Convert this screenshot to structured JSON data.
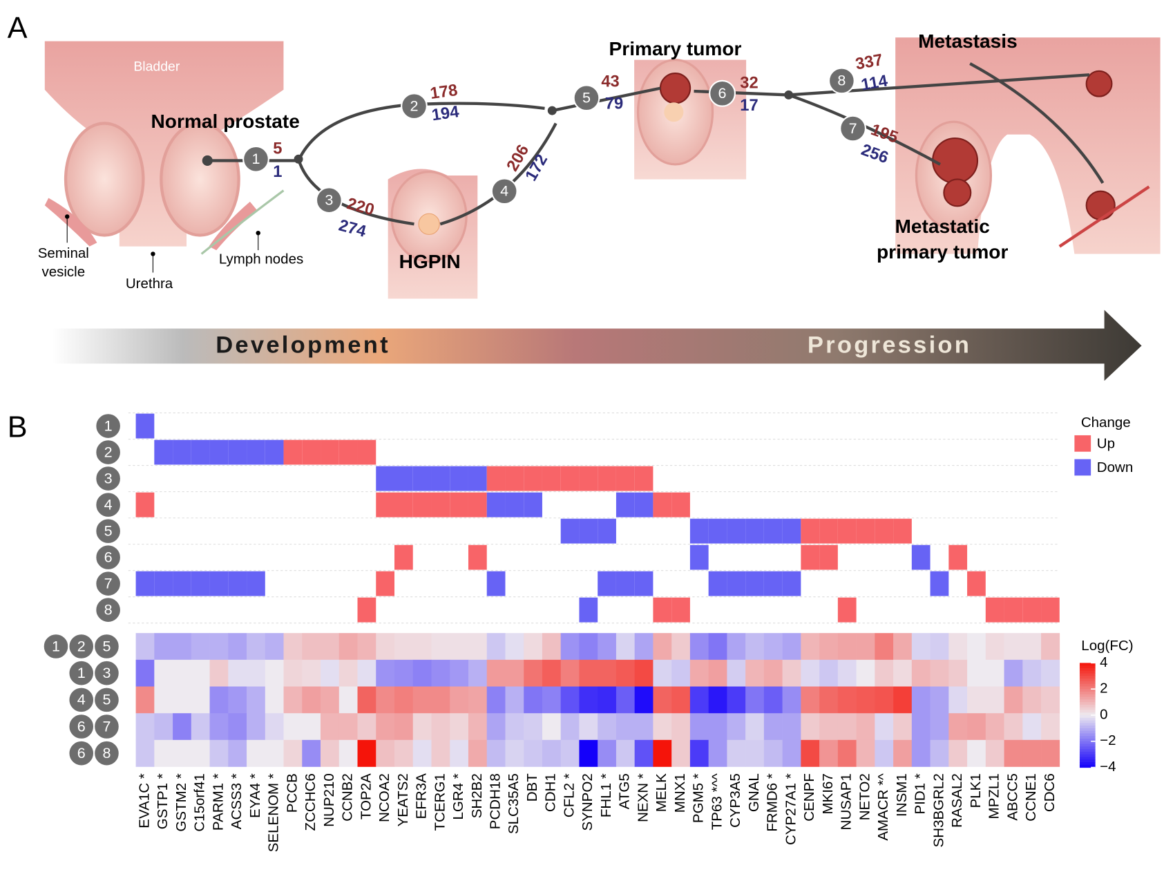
{
  "panel_a": {
    "label": "A",
    "organ_labels": {
      "bladder": "Bladder",
      "seminal": [
        "Seminal",
        "vesicle"
      ],
      "urethra": "Urethra",
      "lymph": "Lymph nodes"
    },
    "stages": {
      "normal": "Normal prostate",
      "hgpin": "HGPIN",
      "primary": "Primary tumor",
      "metastasis": "Metastasis",
      "metastatic_primary": [
        "Metastatic",
        "primary tumor"
      ]
    },
    "steps": [
      {
        "id": "1",
        "up": 5,
        "down": 1
      },
      {
        "id": "2",
        "up": 178,
        "down": 194
      },
      {
        "id": "3",
        "up": 220,
        "down": 274
      },
      {
        "id": "4",
        "up": 206,
        "down": 172
      },
      {
        "id": "5",
        "up": 43,
        "down": 79
      },
      {
        "id": "6",
        "up": 32,
        "down": 17
      },
      {
        "id": "7",
        "up": 195,
        "down": 256
      },
      {
        "id": "8",
        "up": 337,
        "down": 114
      }
    ],
    "axis": [
      "Development",
      "Progression"
    ]
  },
  "chart_data": {
    "type": "heatmap",
    "label": "B",
    "genes": [
      "EVA1C *",
      "GSTP1 *",
      "GSTM2 *",
      "C15orf41",
      "PARM1 *",
      "ACSS3 *",
      "EYA4 *",
      "SELENOM *",
      "PCCB",
      "ZCCHC6",
      "NUP210",
      "CCNB2",
      "TOP2A",
      "NCOA2",
      "YEATS2",
      "EFR3A",
      "TCERG1",
      "LGR4 *",
      "SH2B2",
      "PCDH18",
      "SLC35A5",
      "DBT",
      "CDH1",
      "CFL2 *",
      "SYNPO2",
      "FHL1 *",
      "ATG5",
      "NEXN *",
      "MELK",
      "MNX1",
      "PGM5 *",
      "TP63 *^^",
      "CYP3A5",
      "GNAL",
      "FRMD6 *",
      "CYP27A1 *",
      "CENPF",
      "MKI67",
      "NUSAP1",
      "NETO2",
      "AMACR *^",
      "INSM1",
      "PID1 *",
      "SH3BGRL2",
      "RASAL2",
      "PLK1",
      "MPZL1",
      "ABCC5",
      "CCNE1",
      "CDC6"
    ],
    "change": {
      "title": "Change",
      "rows": [
        "1",
        "2",
        "3",
        "4",
        "5",
        "6",
        "7",
        "8"
      ],
      "legend": [
        {
          "value": 1,
          "name": "Up",
          "color": "#f86468"
        },
        {
          "value": -1,
          "name": "Down",
          "color": "#6763f5"
        }
      ],
      "matrix": [
        [
          -1,
          0,
          0,
          0,
          0,
          0,
          0,
          0,
          0,
          0,
          0,
          0,
          0,
          0,
          0,
          0,
          0,
          0,
          0,
          0,
          0,
          0,
          0,
          0,
          0,
          0,
          0,
          0,
          0,
          0,
          0,
          0,
          0,
          0,
          0,
          0,
          0,
          0,
          0,
          0,
          0,
          0,
          0,
          0,
          0,
          0,
          0,
          0,
          0,
          0
        ],
        [
          0,
          -1,
          -1,
          -1,
          -1,
          -1,
          -1,
          -1,
          1,
          1,
          1,
          1,
          1,
          0,
          0,
          0,
          0,
          0,
          0,
          0,
          0,
          0,
          0,
          0,
          0,
          0,
          0,
          0,
          0,
          0,
          0,
          0,
          0,
          0,
          0,
          0,
          0,
          0,
          0,
          0,
          0,
          0,
          0,
          0,
          0,
          0,
          0,
          0,
          0,
          0
        ],
        [
          0,
          0,
          0,
          0,
          0,
          0,
          0,
          0,
          0,
          0,
          0,
          0,
          0,
          -1,
          -1,
          -1,
          -1,
          -1,
          -1,
          1,
          1,
          1,
          1,
          1,
          1,
          1,
          1,
          1,
          0,
          0,
          0,
          0,
          0,
          0,
          0,
          0,
          0,
          0,
          0,
          0,
          0,
          0,
          0,
          0,
          0,
          0,
          0,
          0,
          0,
          0
        ],
        [
          1,
          0,
          0,
          0,
          0,
          0,
          0,
          0,
          0,
          0,
          0,
          0,
          0,
          1,
          1,
          1,
          1,
          1,
          1,
          -1,
          -1,
          -1,
          0,
          0,
          0,
          0,
          -1,
          -1,
          1,
          1,
          0,
          0,
          0,
          0,
          0,
          0,
          0,
          0,
          0,
          0,
          0,
          0,
          0,
          0,
          0,
          0,
          0,
          0,
          0,
          0
        ],
        [
          0,
          0,
          0,
          0,
          0,
          0,
          0,
          0,
          0,
          0,
          0,
          0,
          0,
          0,
          0,
          0,
          0,
          0,
          0,
          0,
          0,
          0,
          0,
          -1,
          -1,
          -1,
          0,
          0,
          0,
          0,
          -1,
          -1,
          -1,
          -1,
          -1,
          -1,
          1,
          1,
          1,
          1,
          1,
          1,
          0,
          0,
          0,
          0,
          0,
          0,
          0,
          0
        ],
        [
          0,
          0,
          0,
          0,
          0,
          0,
          0,
          0,
          0,
          0,
          0,
          0,
          0,
          0,
          1,
          0,
          0,
          0,
          1,
          0,
          0,
          0,
          0,
          0,
          0,
          0,
          0,
          0,
          0,
          0,
          -1,
          0,
          0,
          0,
          0,
          0,
          1,
          1,
          0,
          0,
          0,
          0,
          -1,
          0,
          1,
          0,
          0,
          0,
          0,
          0
        ],
        [
          -1,
          -1,
          -1,
          -1,
          -1,
          -1,
          -1,
          0,
          0,
          0,
          0,
          0,
          0,
          1,
          0,
          0,
          0,
          0,
          0,
          -1,
          0,
          0,
          0,
          0,
          0,
          -1,
          -1,
          -1,
          0,
          0,
          0,
          -1,
          -1,
          -1,
          -1,
          -1,
          0,
          0,
          0,
          0,
          0,
          0,
          0,
          -1,
          0,
          1,
          0,
          0,
          0,
          0
        ],
        [
          0,
          0,
          0,
          0,
          0,
          0,
          0,
          0,
          0,
          0,
          0,
          0,
          1,
          0,
          0,
          0,
          0,
          0,
          0,
          0,
          0,
          0,
          0,
          0,
          -1,
          0,
          0,
          0,
          1,
          1,
          0,
          0,
          0,
          0,
          0,
          0,
          0,
          0,
          1,
          0,
          0,
          0,
          0,
          0,
          0,
          0,
          1,
          1,
          1,
          1
        ]
      ]
    },
    "logfc": {
      "title": "Log(FC)",
      "rows": [
        [
          "1",
          "2",
          "5"
        ],
        [
          "1",
          "3"
        ],
        [
          "4",
          "5"
        ],
        [
          "6",
          "7"
        ],
        [
          "6",
          "8"
        ]
      ],
      "values": [
        [
          -0.7,
          -1.2,
          -1.2,
          -1,
          -1,
          -1.2,
          -0.8,
          -1,
          0.6,
          0.8,
          0.8,
          1.2,
          1,
          0.4,
          0.3,
          0.3,
          0.2,
          0.2,
          0.2,
          -0.6,
          -0.2,
          0.3,
          0.8,
          -1.5,
          -1.8,
          -1.4,
          -0.4,
          -1.2,
          1.2,
          0.6,
          -1.6,
          -2,
          -1.2,
          -0.8,
          -1,
          -1.2,
          1,
          1.2,
          1.3,
          1.3,
          2,
          1.2,
          -0.4,
          -0.5,
          0.2,
          0,
          0.3,
          0.2,
          0.2,
          0.8
        ],
        [
          -2,
          0,
          0,
          0,
          0.6,
          -0.2,
          -0.2,
          0,
          0.4,
          0.3,
          -0.2,
          0.4,
          -0.2,
          -1.5,
          -1.6,
          -1.8,
          -1.6,
          -1.4,
          -1,
          1.5,
          1.5,
          2.2,
          2.6,
          2,
          2.5,
          2.5,
          2.7,
          3,
          -0.4,
          -0.6,
          1.2,
          1.4,
          -0.5,
          1,
          1.2,
          0.6,
          -0.3,
          -0.6,
          -0.3,
          0,
          0.6,
          0.3,
          1,
          0.8,
          0.6,
          0,
          0,
          -1.2,
          -0.6,
          -0.4
        ],
        [
          1.8,
          0,
          0,
          0,
          -1.6,
          -1.4,
          -1,
          0,
          1,
          1.4,
          1.2,
          0,
          2.5,
          1.8,
          2,
          1.8,
          1.8,
          1.4,
          1.3,
          -1.8,
          -1,
          -2,
          -1.8,
          -2.6,
          -3.2,
          -3.3,
          -2.4,
          -3.8,
          2.5,
          2.7,
          -3,
          -3.6,
          -3,
          -2,
          -2.4,
          -1.6,
          2,
          2.4,
          2.6,
          2.7,
          2.8,
          3.2,
          -1.4,
          -1.2,
          -0.3,
          0.2,
          0.2,
          1.3,
          0.8,
          0.6
        ],
        [
          -0.6,
          -0.8,
          -1.8,
          -0.6,
          -1.4,
          -1.6,
          -1,
          -0.3,
          0,
          0,
          1,
          1,
          0.6,
          1.3,
          1.4,
          0.4,
          0.6,
          0.4,
          1,
          -1.2,
          -0.6,
          -0.5,
          0,
          -0.8,
          -0.3,
          -0.8,
          -1,
          -1,
          0.4,
          0.6,
          -1.4,
          -1.4,
          -1,
          -0.4,
          -1.2,
          -1.2,
          0.6,
          0.8,
          0.8,
          1,
          -0.3,
          0.6,
          -1.4,
          -1.2,
          1.3,
          1.4,
          1,
          0.6,
          -0.2,
          0.4
        ],
        [
          -0.6,
          0,
          0,
          0,
          -0.6,
          -1,
          0,
          0,
          0.4,
          -1.6,
          0.6,
          0,
          4,
          0.8,
          0.6,
          -0.2,
          0.6,
          -0.2,
          1.2,
          -0.8,
          -0.4,
          -0.6,
          -0.8,
          -0.6,
          -4,
          -1.6,
          -0.6,
          -2.6,
          4,
          0.6,
          -3,
          -1.4,
          -0.5,
          -0.5,
          -0.8,
          -1.2,
          3,
          1.6,
          2.2,
          1,
          -0.6,
          1.4,
          -1.4,
          -0.8,
          0.6,
          0,
          0.6,
          1.8,
          1.8,
          1.8
        ]
      ],
      "clim": [
        -4,
        4
      ],
      "ticks": [
        4,
        2,
        0,
        {
          "value": -2,
          "label": "−2"
        },
        {
          "value": -4,
          "label": "−4"
        }
      ]
    }
  }
}
